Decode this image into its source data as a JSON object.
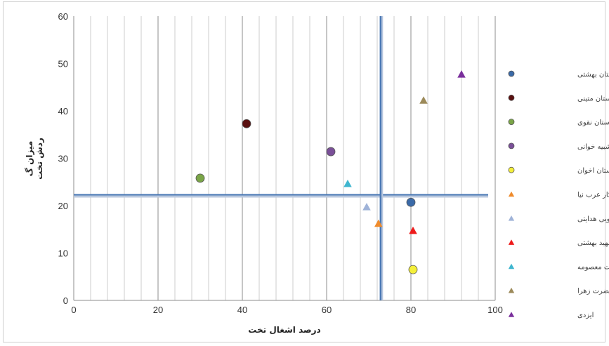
{
  "chart_data": {
    "type": "scatter",
    "xlabel": "درصد اشغال تخت",
    "ylabel": [
      "میزان گ",
      "ردش تخت"
    ],
    "xlim": [
      0,
      100
    ],
    "ylim": [
      0,
      60
    ],
    "x_ticks": [
      "0",
      "20",
      "40",
      "60",
      "80",
      "100"
    ],
    "y_ticks": [
      "0",
      "10",
      "20",
      "30",
      "40",
      "50",
      "60"
    ],
    "grid": true,
    "legend_position": "right",
    "reference_lines": {
      "vertical_x": 72.8,
      "horizontal_y": 22.3
    },
    "series": [
      {
        "name": "بیمارستان بهشتی",
        "marker": "circle",
        "color": "#3a6aa8",
        "x": 80,
        "y": 20.7
      },
      {
        "name": "بیمارستان متینی",
        "marker": "circle",
        "color": "#5a1010",
        "x": 41,
        "y": 37.3
      },
      {
        "name": "بیمارستان نقوی",
        "marker": "circle",
        "color": "#7aa547",
        "x": 30,
        "y": 25.8
      },
      {
        "name": "بیمارستان شبیه خوانی",
        "marker": "circle",
        "color": "#7a4f98",
        "x": 61,
        "y": 31.4
      },
      {
        "name": "بیمارستان اخوان",
        "marker": "circle",
        "color": "#f4ef3a",
        "x": 80.5,
        "y": 6.5
      },
      {
        "name": "کامکار عرب نیا",
        "marker": "triangle",
        "color": "#ef8b2c",
        "x": 72.3,
        "y": 16.3
      },
      {
        "name": "نکویی هدایتی",
        "marker": "triangle",
        "color": "#9fb3d8",
        "x": 69.5,
        "y": 19.8
      },
      {
        "name": "شهید بهشتی",
        "marker": "triangle",
        "color": "#ee1c1c",
        "x": 80.5,
        "y": 14.8
      },
      {
        "name": "حضرت معصومه",
        "marker": "triangle",
        "color": "#3fb6cf",
        "x": 65,
        "y": 24.7
      },
      {
        "name": "حضرت زهرا",
        "marker": "triangle",
        "color": "#9c8a5a",
        "x": 83,
        "y": 42.3
      },
      {
        "name": "ایزدی",
        "marker": "triangle",
        "color": "#7a2f9c",
        "x": 92,
        "y": 47.8
      }
    ]
  }
}
